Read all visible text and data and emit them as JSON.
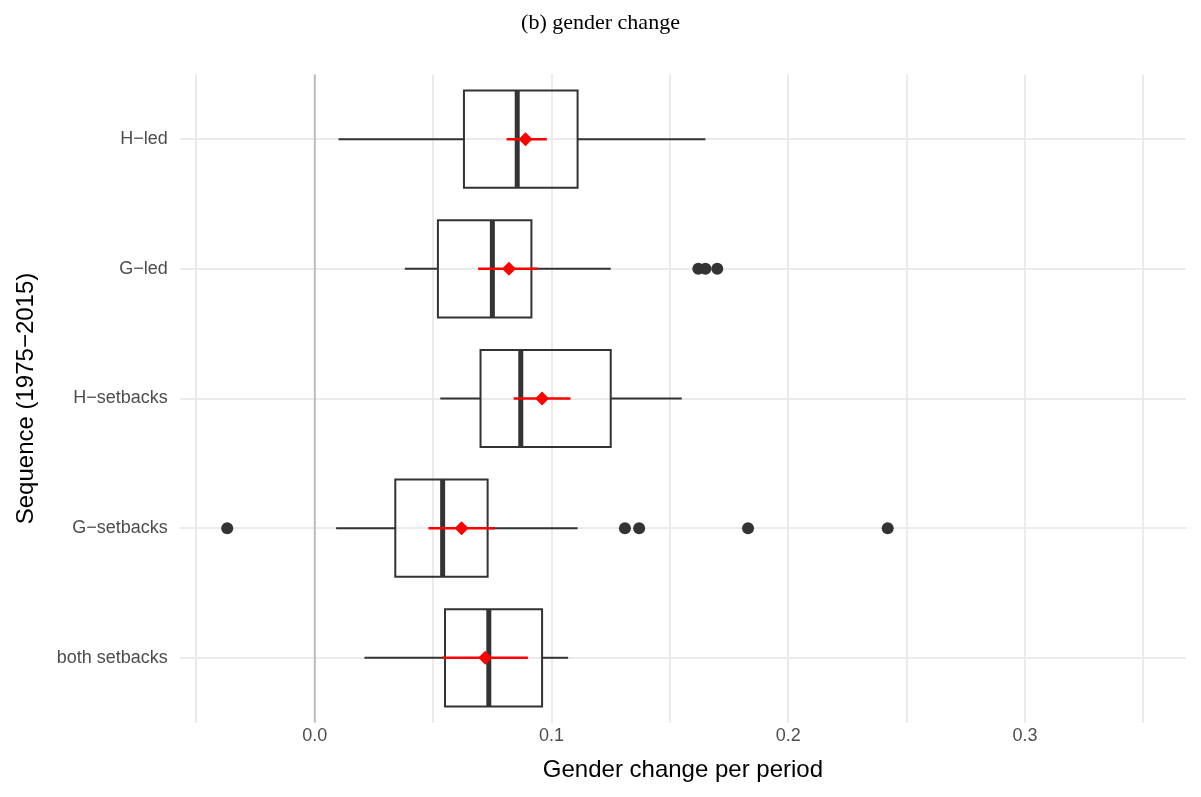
{
  "chart_data": {
    "type": "box",
    "orientation": "horizontal",
    "title": "(b) gender change",
    "xlabel": "Gender change per period",
    "ylabel": "Sequence (1975−2015)",
    "categories": [
      "H−led",
      "G−led",
      "H−setbacks",
      "G−setbacks",
      "both setbacks"
    ],
    "series": [
      {
        "type": "box",
        "color": "#333333",
        "boxes": [
          {
            "low": 0.01,
            "q1": 0.063,
            "median": 0.0855,
            "q3": 0.111,
            "high": 0.165
          },
          {
            "low": 0.038,
            "q1": 0.052,
            "median": 0.075,
            "q3": 0.0915,
            "high": 0.125,
            "outliers": [
              0.162,
              0.165,
              0.17
            ]
          },
          {
            "low": 0.053,
            "q1": 0.07,
            "median": 0.087,
            "q3": 0.125,
            "high": 0.155
          },
          {
            "low": 0.009,
            "q1": 0.034,
            "median": 0.054,
            "q3": 0.073,
            "high": 0.111,
            "outliers": [
              -0.037,
              0.131,
              0.137,
              0.183,
              0.242
            ]
          },
          {
            "low": 0.021,
            "q1": 0.055,
            "median": 0.0735,
            "q3": 0.096,
            "high": 0.107
          }
        ]
      },
      {
        "type": "scatter",
        "color": "#ff0000",
        "marker": "diamond",
        "values": [
          0.089,
          0.082,
          0.096,
          0.062,
          0.072
        ],
        "errors": [
          [
            0.081,
            0.098
          ],
          [
            0.069,
            0.094
          ],
          [
            0.084,
            0.108
          ],
          [
            0.048,
            0.076
          ],
          [
            0.054,
            0.09
          ]
        ]
      }
    ],
    "xlim": [
      -0.057,
      0.368
    ],
    "xticks": [
      {
        "value": -0.05,
        "label": null
      },
      {
        "value": 0,
        "label": "0.0"
      },
      {
        "value": 0.05,
        "label": null
      },
      {
        "value": 0.1,
        "label": "0.1"
      },
      {
        "value": 0.15,
        "label": null
      },
      {
        "value": 0.2,
        "label": "0.2"
      },
      {
        "value": 0.25,
        "label": null
      },
      {
        "value": 0.3,
        "label": "0.3"
      },
      {
        "value": 0.35,
        "label": null
      }
    ],
    "grid": true,
    "ref_lines": [
      {
        "axis": "x",
        "value": 0,
        "color": "#bebebe"
      }
    ]
  }
}
